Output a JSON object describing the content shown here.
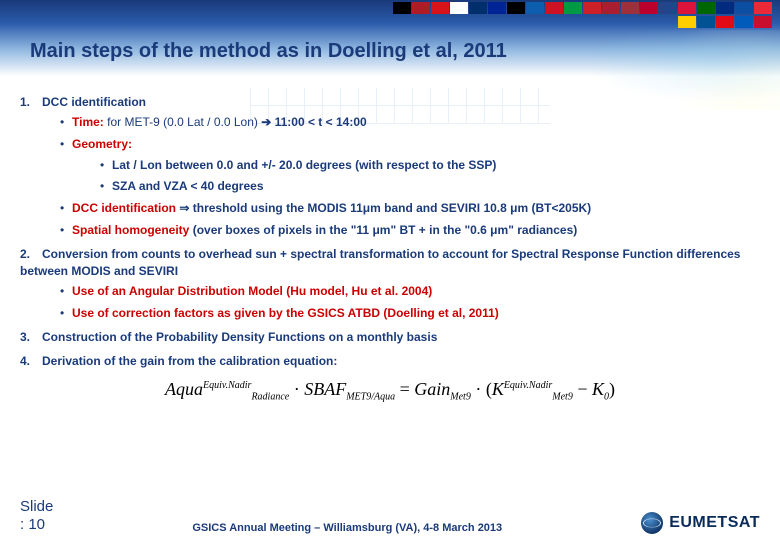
{
  "title": "Main steps of the method as in Doelling et al, 2011",
  "flags_row1_colors": [
    "#000000",
    "#ae1c28",
    "#d7141a",
    "#ffffff",
    "#002f6c",
    "#002395",
    "#000000",
    "#0d5eaf",
    "#ce1124",
    "#009a44",
    "#cd212a",
    "#a91f32",
    "#9e3039",
    "#bc002d",
    "#21468b",
    "#dc143c",
    "#006600",
    "#002b7f",
    "#0b4ea2",
    "#ed2939"
  ],
  "flags_row2_colors": [
    "#ffce00",
    "#005293",
    "#e30a17",
    "#005bbb",
    "#c8102e"
  ],
  "steps": {
    "s1": {
      "num": "1.",
      "label": "DCC identification",
      "time_label": "Time:",
      "time_text": " for MET-9 (0.0 Lat / 0.0 Lon) ",
      "time_arrow": "➔",
      "time_cond": " 11:00 < t < 14:00",
      "geom_label": "Geometry:",
      "g1": "Lat / Lon between 0.0 and +/- 20.0 degrees (with respect to the SSP)",
      "g2": "SZA and VZA < 40 degrees",
      "dcc_label": "DCC identification ",
      "dcc_arrow": "⇒",
      "dcc_text": " threshold using the MODIS 11μm band and SEVIRI 10.8 μm (BT<205K)",
      "sh_label": "Spatial homogeneity",
      "sh_text": " (over boxes of pixels in the \"11 μm\" BT + in the \"0.6 μm\" radiances)"
    },
    "s2": {
      "num": "2.",
      "label": "Conversion from counts to overhead sun + spectral transformation to account for Spectral Response Function differences between MODIS and SEVIRI",
      "b1": "Use of an Angular Distribution Model (Hu model, Hu et al. 2004)",
      "b2": "Use of correction factors as given by the GSICS ATBD (Doelling et al, 2011)"
    },
    "s3": {
      "num": "3.",
      "label": "Construction of the Probability Density Functions on a monthly basis"
    },
    "s4": {
      "num": "4.",
      "label": "Derivation of the gain from the calibration equation:"
    }
  },
  "equation": {
    "pieces": {
      "aqua": "Aqua",
      "rad": "Radiance",
      "sup1": "Equiv.Nadir",
      "dot": " · ",
      "sbaf": "SBAF",
      "sub_sbaf": "MET9/Aqua",
      "eq": " = ",
      "gain": "Gain",
      "sub_gain": "Met9",
      "K": "K",
      "sub_K": "Met9",
      "minus": " − ",
      "K0": "K",
      "sub0": "0"
    }
  },
  "footer": {
    "slide": "Slide",
    "slidenum": ": 10",
    "center": "GSICS Annual Meeting – Williamsburg (VA), 4-8 March 2013",
    "brand": "EUMETSAT"
  }
}
